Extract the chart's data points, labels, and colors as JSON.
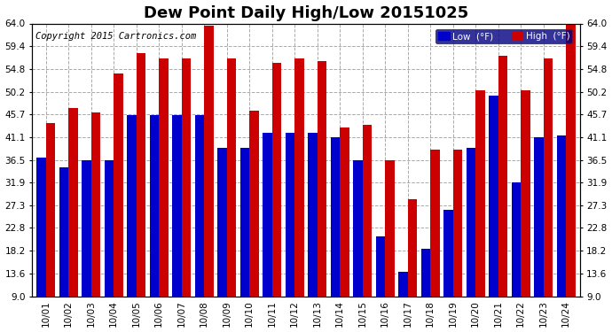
{
  "title": "Dew Point Daily High/Low 20151025",
  "copyright": "Copyright 2015 Cartronics.com",
  "legend_low": "Low  (°F)",
  "legend_high": "High  (°F)",
  "dates": [
    "10/01",
    "10/02",
    "10/03",
    "10/04",
    "10/05",
    "10/06",
    "10/07",
    "10/08",
    "10/09",
    "10/10",
    "10/11",
    "10/12",
    "10/13",
    "10/14",
    "10/15",
    "10/16",
    "10/17",
    "10/18",
    "10/19",
    "10/20",
    "10/21",
    "10/22",
    "10/23",
    "10/24"
  ],
  "high_values": [
    44.0,
    47.0,
    46.0,
    54.0,
    58.0,
    57.0,
    57.0,
    63.5,
    57.0,
    46.5,
    56.0,
    57.0,
    56.5,
    43.0,
    43.5,
    36.5,
    28.5,
    38.5,
    38.5,
    50.5,
    57.5,
    50.5,
    57.0,
    64.0
  ],
  "low_values": [
    37.0,
    35.0,
    36.5,
    36.5,
    45.5,
    45.5,
    45.5,
    45.5,
    39.0,
    39.0,
    42.0,
    42.0,
    42.0,
    41.0,
    36.5,
    21.0,
    14.0,
    18.5,
    26.5,
    39.0,
    49.5,
    32.0,
    41.0,
    41.5
  ],
  "ylim_min": 9.0,
  "ylim_max": 64.0,
  "yticks": [
    9.0,
    13.6,
    18.2,
    22.8,
    27.3,
    31.9,
    36.5,
    41.1,
    45.7,
    50.2,
    54.8,
    59.4,
    64.0
  ],
  "bar_color_low": "#0000cc",
  "bar_color_high": "#cc0000",
  "bg_color": "#ffffff",
  "plot_bg_color": "#ffffff",
  "grid_color": "#aaaaaa",
  "title_fontsize": 13,
  "tick_fontsize": 7.5,
  "copyright_fontsize": 7.5
}
